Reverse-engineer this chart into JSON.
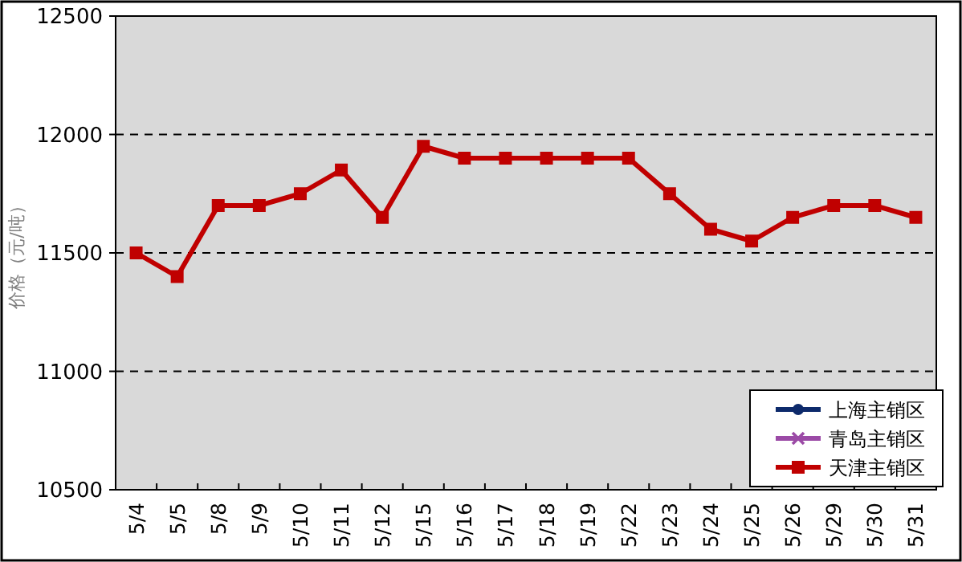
{
  "chart_data": {
    "type": "line",
    "ylabel": "价格（元/吨）",
    "categories": [
      "5/4",
      "5/5",
      "5/8",
      "5/9",
      "5/10",
      "5/11",
      "5/12",
      "5/15",
      "5/16",
      "5/17",
      "5/18",
      "5/19",
      "5/22",
      "5/23",
      "5/24",
      "5/25",
      "5/26",
      "5/29",
      "5/30",
      "5/31"
    ],
    "series": [
      {
        "name": "上海主销区",
        "color": "#0d2a6b",
        "marker": "circle",
        "values": [
          null,
          null,
          null,
          null,
          null,
          null,
          null,
          null,
          null,
          null,
          null,
          null,
          null,
          null,
          null,
          null,
          null,
          null,
          null,
          null
        ]
      },
      {
        "name": "青岛主销区",
        "color": "#9b4aa6",
        "marker": "cross",
        "values": [
          null,
          null,
          null,
          null,
          null,
          null,
          null,
          null,
          null,
          null,
          null,
          null,
          null,
          null,
          null,
          null,
          null,
          null,
          null,
          null
        ]
      },
      {
        "name": "天津主销区",
        "color": "#c00000",
        "marker": "square",
        "values": [
          11500,
          11400,
          11700,
          11700,
          11750,
          11850,
          11650,
          11950,
          11900,
          11900,
          11900,
          11900,
          11900,
          11750,
          11600,
          11550,
          11650,
          11700,
          11700,
          11650
        ]
      }
    ],
    "ylim": [
      10500,
      12500
    ],
    "yticks": [
      10500,
      11000,
      11500,
      12000,
      12500
    ],
    "grid": "y",
    "legend": "bottom right",
    "line_style": "solid"
  }
}
